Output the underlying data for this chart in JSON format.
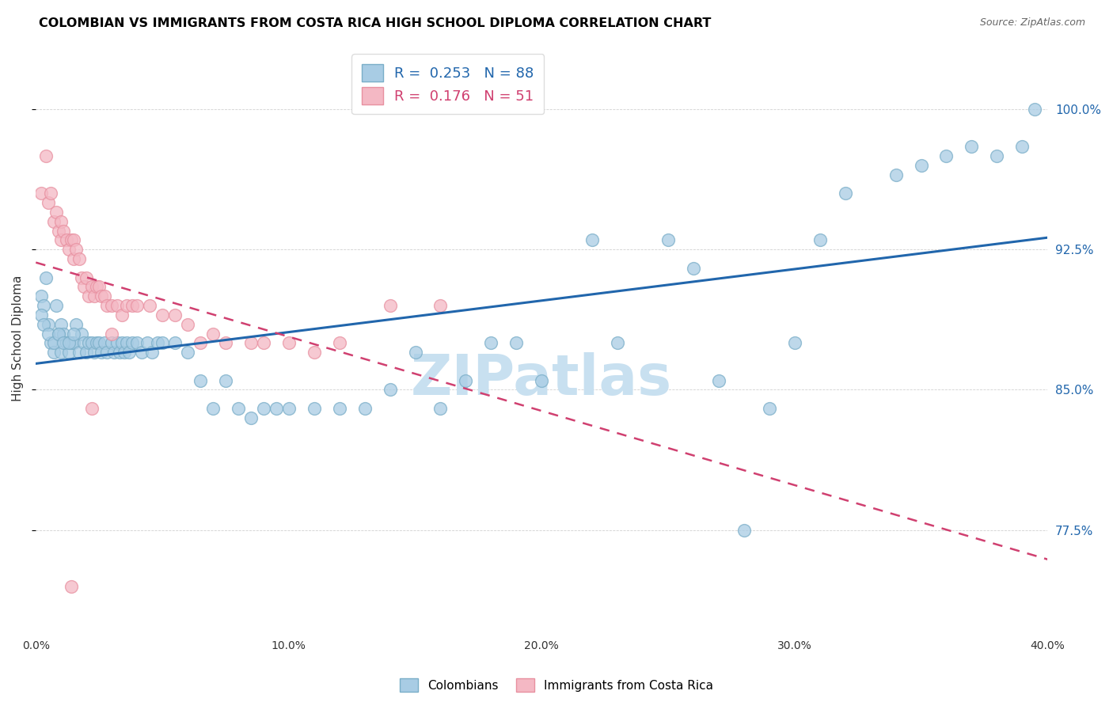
{
  "title": "COLOMBIAN VS IMMIGRANTS FROM COSTA RICA HIGH SCHOOL DIPLOMA CORRELATION CHART",
  "source": "Source: ZipAtlas.com",
  "ylabel": "High School Diploma",
  "ytick_labels": [
    "77.5%",
    "85.0%",
    "92.5%",
    "100.0%"
  ],
  "ytick_values": [
    0.775,
    0.85,
    0.925,
    1.0
  ],
  "xtick_values": [
    0.0,
    0.1,
    0.2,
    0.3,
    0.4
  ],
  "xtick_labels": [
    "0.0%",
    "10.0%",
    "20.0%",
    "30.0%",
    "40.0%"
  ],
  "xmin": 0.0,
  "xmax": 0.4,
  "ymin": 0.72,
  "ymax": 1.035,
  "legend_blue_R": "0.253",
  "legend_blue_N": "88",
  "legend_pink_R": "0.176",
  "legend_pink_N": "51",
  "blue_color": "#a8cce4",
  "pink_color": "#f4b8c4",
  "blue_edge_color": "#7aaec8",
  "pink_edge_color": "#e890a0",
  "blue_line_color": "#2166ac",
  "pink_line_color": "#d04070",
  "watermark_color": "#c8e0f0",
  "watermark": "ZIPatlas",
  "blue_scatter_x": [
    0.002,
    0.003,
    0.004,
    0.005,
    0.006,
    0.007,
    0.008,
    0.009,
    0.01,
    0.01,
    0.011,
    0.012,
    0.013,
    0.014,
    0.015,
    0.016,
    0.017,
    0.018,
    0.019,
    0.02,
    0.021,
    0.022,
    0.023,
    0.024,
    0.025,
    0.026,
    0.027,
    0.028,
    0.03,
    0.031,
    0.032,
    0.033,
    0.034,
    0.035,
    0.036,
    0.037,
    0.038,
    0.04,
    0.042,
    0.044,
    0.046,
    0.048,
    0.05,
    0.055,
    0.06,
    0.065,
    0.07,
    0.075,
    0.08,
    0.085,
    0.09,
    0.095,
    0.1,
    0.11,
    0.12,
    0.13,
    0.14,
    0.15,
    0.16,
    0.17,
    0.18,
    0.19,
    0.2,
    0.22,
    0.23,
    0.25,
    0.26,
    0.27,
    0.28,
    0.29,
    0.3,
    0.31,
    0.32,
    0.34,
    0.35,
    0.36,
    0.37,
    0.38,
    0.39,
    0.395,
    0.002,
    0.003,
    0.005,
    0.007,
    0.009,
    0.011,
    0.013,
    0.015
  ],
  "blue_scatter_y": [
    0.9,
    0.895,
    0.91,
    0.885,
    0.875,
    0.87,
    0.895,
    0.88,
    0.885,
    0.87,
    0.88,
    0.875,
    0.87,
    0.875,
    0.875,
    0.885,
    0.87,
    0.88,
    0.875,
    0.87,
    0.875,
    0.875,
    0.87,
    0.875,
    0.875,
    0.87,
    0.875,
    0.87,
    0.875,
    0.87,
    0.875,
    0.87,
    0.875,
    0.87,
    0.875,
    0.87,
    0.875,
    0.875,
    0.87,
    0.875,
    0.87,
    0.875,
    0.875,
    0.875,
    0.87,
    0.855,
    0.84,
    0.855,
    0.84,
    0.835,
    0.84,
    0.84,
    0.84,
    0.84,
    0.84,
    0.84,
    0.85,
    0.87,
    0.84,
    0.855,
    0.875,
    0.875,
    0.855,
    0.93,
    0.875,
    0.93,
    0.915,
    0.855,
    0.775,
    0.84,
    0.875,
    0.93,
    0.955,
    0.965,
    0.97,
    0.975,
    0.98,
    0.975,
    0.98,
    1.0,
    0.89,
    0.885,
    0.88,
    0.875,
    0.88,
    0.875,
    0.875,
    0.88
  ],
  "pink_scatter_x": [
    0.002,
    0.004,
    0.005,
    0.006,
    0.007,
    0.008,
    0.009,
    0.01,
    0.01,
    0.011,
    0.012,
    0.013,
    0.014,
    0.015,
    0.015,
    0.016,
    0.017,
    0.018,
    0.019,
    0.02,
    0.021,
    0.022,
    0.023,
    0.024,
    0.025,
    0.026,
    0.027,
    0.028,
    0.03,
    0.032,
    0.034,
    0.036,
    0.038,
    0.04,
    0.045,
    0.05,
    0.055,
    0.06,
    0.065,
    0.07,
    0.075,
    0.085,
    0.09,
    0.1,
    0.11,
    0.12,
    0.14,
    0.16,
    0.014,
    0.022,
    0.03
  ],
  "pink_scatter_y": [
    0.955,
    0.975,
    0.95,
    0.955,
    0.94,
    0.945,
    0.935,
    0.94,
    0.93,
    0.935,
    0.93,
    0.925,
    0.93,
    0.93,
    0.92,
    0.925,
    0.92,
    0.91,
    0.905,
    0.91,
    0.9,
    0.905,
    0.9,
    0.905,
    0.905,
    0.9,
    0.9,
    0.895,
    0.895,
    0.895,
    0.89,
    0.895,
    0.895,
    0.895,
    0.895,
    0.89,
    0.89,
    0.885,
    0.875,
    0.88,
    0.875,
    0.875,
    0.875,
    0.875,
    0.87,
    0.875,
    0.895,
    0.895,
    0.745,
    0.84,
    0.88
  ]
}
